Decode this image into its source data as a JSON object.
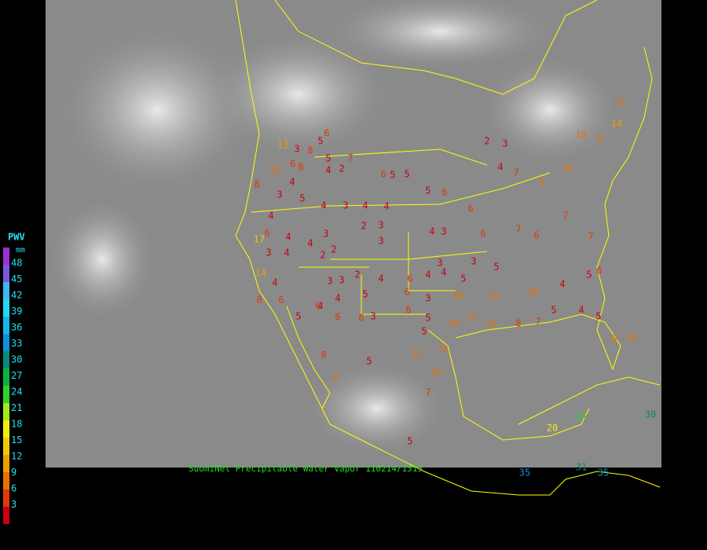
{
  "legend": {
    "title": "PWV",
    "unit": "mm",
    "levels": [
      48,
      45,
      42,
      39,
      36,
      33,
      30,
      27,
      24,
      21,
      18,
      15,
      12,
      9,
      6,
      3
    ],
    "colors": [
      "#9b30d0",
      "#7b55e0",
      "#3fb8f0",
      "#22d8f0",
      "#14b8e8",
      "#1090d8",
      "#0a8878",
      "#10b040",
      "#30d030",
      "#a0e820",
      "#f0f010",
      "#f0c808",
      "#e8a000",
      "#e87000",
      "#e03808",
      "#c80010"
    ],
    "label_color": "#20e0f0"
  },
  "caption": {
    "text": "SuomiNet Precipitable Water Vapor",
    "stamp": "110214/1315",
    "color": "#20e020"
  },
  "stations": [
    6,
    13,
    3,
    8,
    5,
    5,
    7,
    2,
    4,
    6,
    5,
    5,
    5,
    6,
    6,
    2,
    3,
    4,
    7,
    9,
    10,
    10,
    9,
    14,
    11,
    10,
    6,
    8,
    8,
    4,
    3,
    5,
    4,
    3,
    4,
    4,
    4,
    17,
    6,
    4,
    4,
    2,
    3,
    2,
    3,
    3,
    14,
    3,
    4,
    2,
    4,
    3,
    6,
    7,
    6,
    7,
    7,
    3,
    4,
    3,
    5,
    4,
    6,
    4,
    5,
    3,
    3,
    2,
    4,
    8,
    6,
    4,
    4,
    5,
    6,
    3,
    10,
    10,
    10,
    4,
    5,
    6,
    5,
    6,
    6,
    6,
    3,
    6,
    5,
    5,
    10,
    11,
    11,
    8,
    7,
    5,
    4,
    5,
    9,
    10,
    8,
    5,
    11,
    11,
    10,
    9,
    7,
    5,
    24,
    20,
    30,
    35,
    31,
    35
  ]
}
